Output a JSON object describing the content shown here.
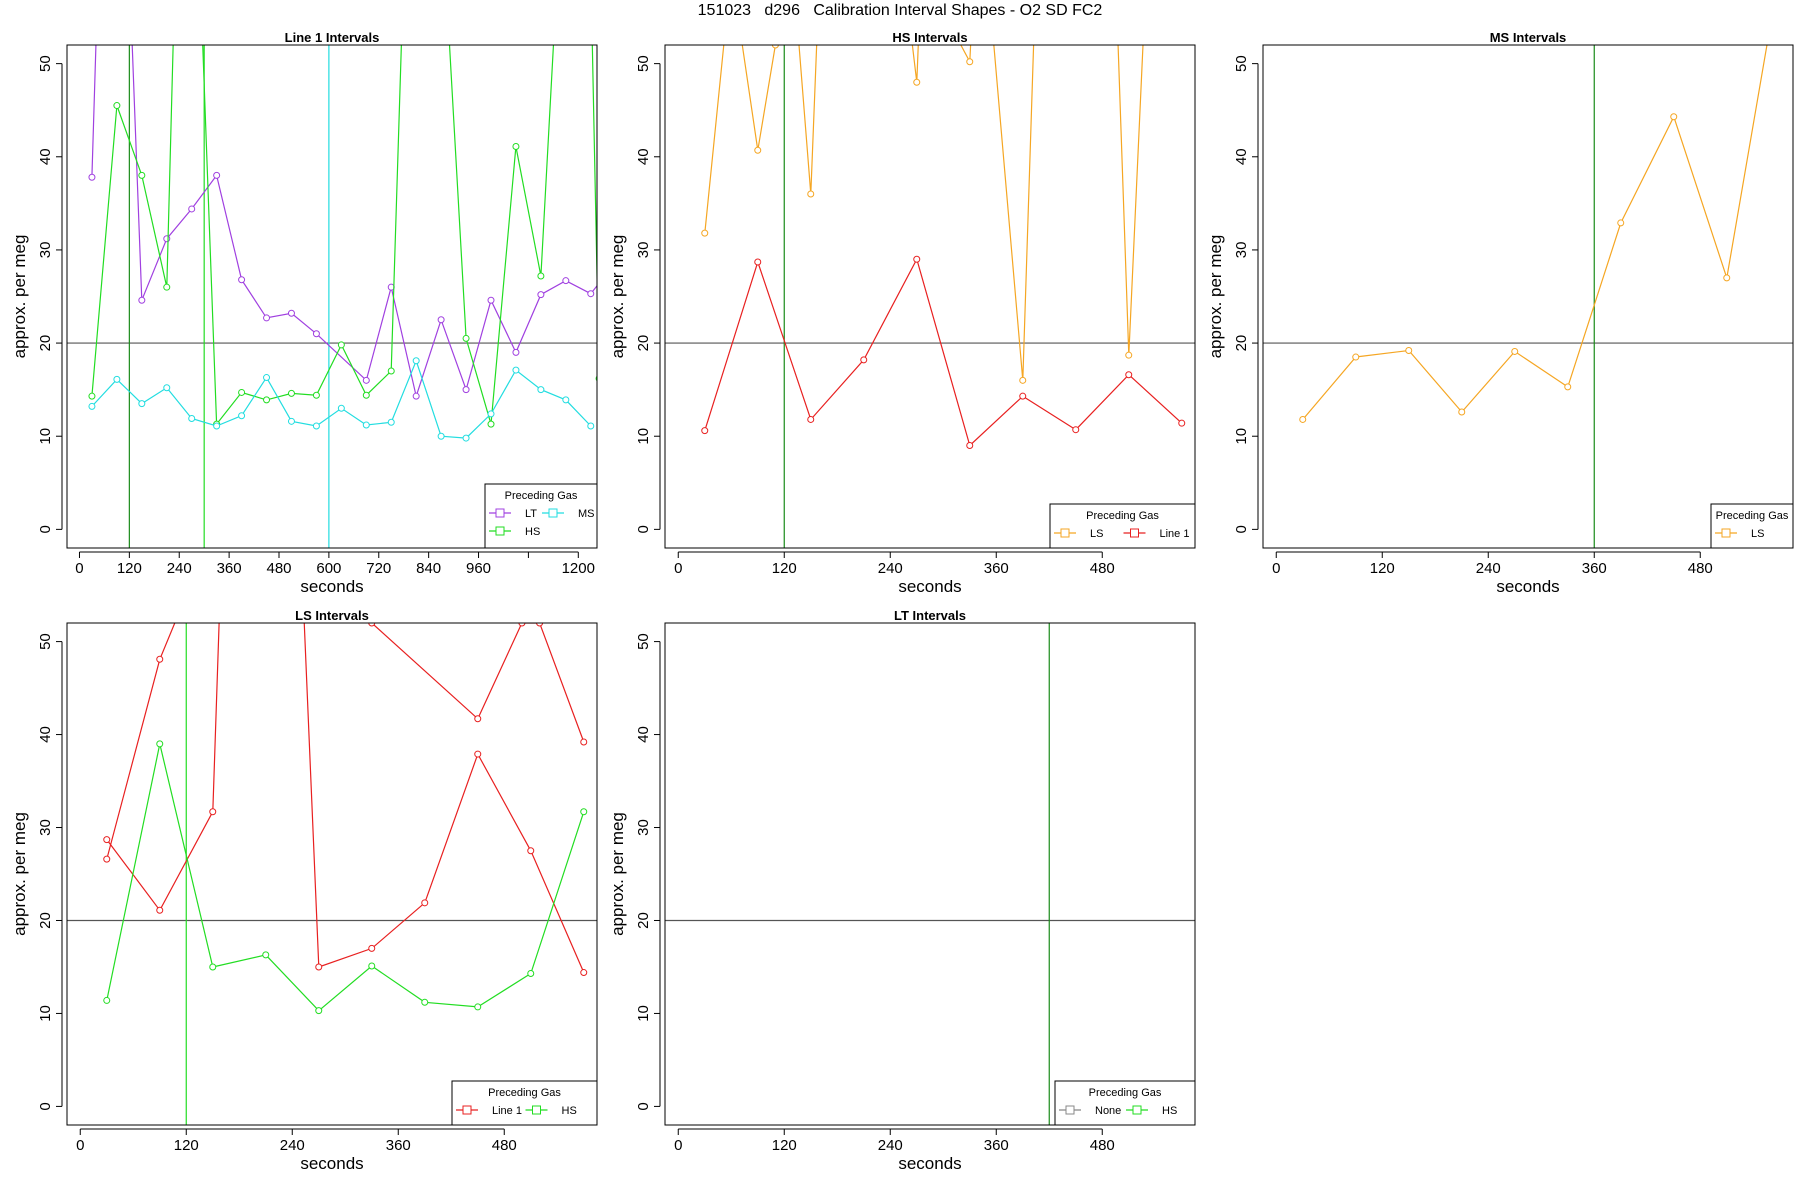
{
  "page_title": "151023   d296   Calibration Interval Shapes - O2 SD FC2",
  "colors": {
    "LT": "#a040e0",
    "HS": "#22dd22",
    "MS": "#22dde0",
    "LS": "#f5a623",
    "Line 1": "#e82020",
    "None": "#888888",
    "reference_line": "#555555",
    "marker_line": "#1a8a1a"
  },
  "chart_data": [
    {
      "type": "line",
      "title": "Line 1 Intervals",
      "xlabel": "seconds",
      "ylabel": "approx. per meg",
      "xlim": [
        -30,
        1245
      ],
      "ylim": [
        -2,
        52
      ],
      "xticks": [
        0,
        120,
        240,
        360,
        480,
        600,
        720,
        840,
        960,
        1080,
        1200
      ],
      "xtick_labels": [
        "0",
        "120",
        "240",
        "360",
        "480",
        "600",
        "720",
        "840",
        "960",
        "",
        "1200"
      ],
      "yticks": [
        0,
        10,
        20,
        30,
        40,
        50
      ],
      "hline": 20,
      "vlines": [
        {
          "x": 120,
          "color": "#1a8a1a"
        },
        {
          "x": 300,
          "color": "#22dd22"
        },
        {
          "x": 600,
          "color": "#22dde0"
        }
      ],
      "legend": {
        "title": "Preceding Gas",
        "position": "bottom-right",
        "columns": 2,
        "entries": [
          "LT",
          "MS",
          "HS"
        ]
      },
      "series": [
        {
          "name": "LT",
          "x": [
            30,
            45,
            120,
            150,
            210,
            270,
            330,
            390,
            450,
            510,
            570,
            690,
            750,
            810,
            870,
            930,
            990,
            1050,
            1110,
            1170,
            1230,
            1260
          ],
          "y": [
            37.8,
            60,
            60,
            24.6,
            31.2,
            34.4,
            38,
            26.8,
            22.7,
            23.2,
            21,
            16,
            26,
            14.3,
            22.5,
            15,
            24.6,
            19,
            25.2,
            26.7,
            25.3,
            27
          ]
        },
        {
          "name": "HS",
          "x": [
            30,
            90,
            150,
            210,
            230,
            290,
            330,
            390,
            450,
            510,
            570,
            630,
            690,
            750,
            780,
            880,
            930,
            990,
            1050,
            1110,
            1150,
            1230,
            1250
          ],
          "y": [
            14.3,
            45.5,
            38,
            26,
            60,
            60,
            11.3,
            14.7,
            13.9,
            14.6,
            14.4,
            19.8,
            14.4,
            17,
            60,
            60,
            20.5,
            11.3,
            41.1,
            27.2,
            60,
            60,
            16.2
          ]
        },
        {
          "name": "MS",
          "x": [
            30,
            90,
            150,
            210,
            270,
            330,
            390,
            450,
            510,
            570,
            630,
            690,
            750,
            810,
            870,
            930,
            990,
            1050,
            1110,
            1170,
            1230
          ],
          "y": [
            13.2,
            16.1,
            13.5,
            15.2,
            11.9,
            11.1,
            12.2,
            16.3,
            11.6,
            11.1,
            13,
            11.2,
            11.5,
            18.1,
            10,
            9.8,
            12.4,
            17.1,
            15,
            13.9,
            11.1
          ]
        }
      ]
    },
    {
      "type": "line",
      "title": "HS Intervals",
      "xlabel": "seconds",
      "ylabel": "approx. per meg",
      "xlim": [
        -15,
        585
      ],
      "ylim": [
        -2,
        52
      ],
      "xticks": [
        0,
        120,
        240,
        360,
        480
      ],
      "xtick_labels": [
        "0",
        "120",
        "240",
        "360",
        "480"
      ],
      "yticks": [
        0,
        10,
        20,
        30,
        40,
        50
      ],
      "hline": 20,
      "vlines": [
        {
          "x": 120,
          "color": "#1a8a1a"
        }
      ],
      "legend": {
        "title": "Preceding Gas",
        "position": "bottom-right",
        "columns": 2,
        "entries": [
          "LS",
          "Line 1"
        ]
      },
      "series": [
        {
          "name": "LS",
          "x": [
            30,
            60,
            90,
            110,
            130,
            150,
            160,
            255,
            270,
            275,
            330,
            335,
            350,
            390,
            405,
            495,
            510,
            530
          ],
          "y": [
            31.8,
            60,
            40.7,
            52,
            60,
            36,
            60,
            60,
            48,
            60,
            50.2,
            60,
            60,
            16,
            60,
            60,
            18.7,
            60
          ]
        },
        {
          "name": "Line 1",
          "x": [
            30,
            90,
            150,
            210,
            270,
            330,
            390,
            450,
            510,
            570
          ],
          "y": [
            10.6,
            28.7,
            11.8,
            18.2,
            29,
            9,
            14.3,
            10.7,
            16.6,
            11.4
          ]
        }
      ]
    },
    {
      "type": "line",
      "title": "MS Intervals",
      "xlabel": "seconds",
      "ylabel": "approx. per meg",
      "xlim": [
        -15,
        585
      ],
      "ylim": [
        -2,
        52
      ],
      "xticks": [
        0,
        120,
        240,
        360,
        480
      ],
      "xtick_labels": [
        "0",
        "120",
        "240",
        "360",
        "480"
      ],
      "yticks": [
        0,
        10,
        20,
        30,
        40,
        50
      ],
      "hline": 20,
      "vlines": [
        {
          "x": 360,
          "color": "#1a8a1a"
        }
      ],
      "legend": {
        "title": "Preceding Gas",
        "position": "bottom-right",
        "columns": 1,
        "entries": [
          "LS"
        ]
      },
      "series": [
        {
          "name": "LS",
          "x": [
            30,
            90,
            150,
            210,
            270,
            330,
            390,
            450,
            510,
            570
          ],
          "y": [
            11.8,
            18.5,
            19.2,
            12.6,
            19.1,
            15.3,
            32.9,
            44.3,
            27,
            60
          ]
        }
      ]
    },
    {
      "type": "line",
      "title": "LS Intervals",
      "xlabel": "seconds",
      "ylabel": "approx. per meg",
      "xlim": [
        -15,
        585
      ],
      "ylim": [
        -2,
        52
      ],
      "xticks": [
        0,
        120,
        240,
        360,
        480
      ],
      "xtick_labels": [
        "0",
        "120",
        "240",
        "360",
        "480"
      ],
      "yticks": [
        0,
        10,
        20,
        30,
        40,
        50
      ],
      "hline": 20,
      "vlines": [
        {
          "x": 120,
          "color": "#22dd22"
        }
      ],
      "legend": {
        "title": "Preceding Gas",
        "position": "bottom-right",
        "columns": 2,
        "entries": [
          "Line 1",
          "HS"
        ]
      },
      "series": [
        {
          "name": "Line 1",
          "segments": [
            {
              "x": [
                30,
                90,
                120
              ],
              "y": [
                26.6,
                48.1,
                55
              ]
            },
            {
              "x": [
                30,
                90,
                150,
                160
              ],
              "y": [
                28.7,
                21.1,
                31.7,
                60
              ]
            },
            {
              "x": [
                250,
                270,
                330,
                390,
                450,
                510,
                570
              ],
              "y": [
                60,
                15,
                17,
                21.9,
                37.9,
                27.5,
                14.4
              ]
            },
            {
              "x": [
                330,
                450,
                500,
                520,
                570
              ],
              "y": [
                52,
                41.7,
                52,
                52,
                39.2
              ]
            }
          ]
        },
        {
          "name": "HS",
          "x": [
            30,
            90,
            150,
            210,
            270,
            330,
            390,
            450,
            510,
            570
          ],
          "y": [
            11.4,
            39,
            15,
            16.3,
            10.3,
            15.1,
            11.2,
            10.7,
            14.3,
            31.7
          ]
        }
      ]
    },
    {
      "type": "line",
      "title": "LT Intervals",
      "xlabel": "seconds",
      "ylabel": "approx. per meg",
      "xlim": [
        -15,
        585
      ],
      "ylim": [
        -2,
        52
      ],
      "xticks": [
        0,
        120,
        240,
        360,
        480
      ],
      "xtick_labels": [
        "0",
        "120",
        "240",
        "360",
        "480"
      ],
      "yticks": [
        0,
        10,
        20,
        30,
        40,
        50
      ],
      "hline": 20,
      "vlines": [
        {
          "x": 420,
          "color": "#1a8a1a"
        }
      ],
      "legend": {
        "title": "Preceding Gas",
        "position": "bottom-right",
        "columns": 2,
        "entries": [
          "None",
          "HS"
        ]
      },
      "series": []
    }
  ]
}
